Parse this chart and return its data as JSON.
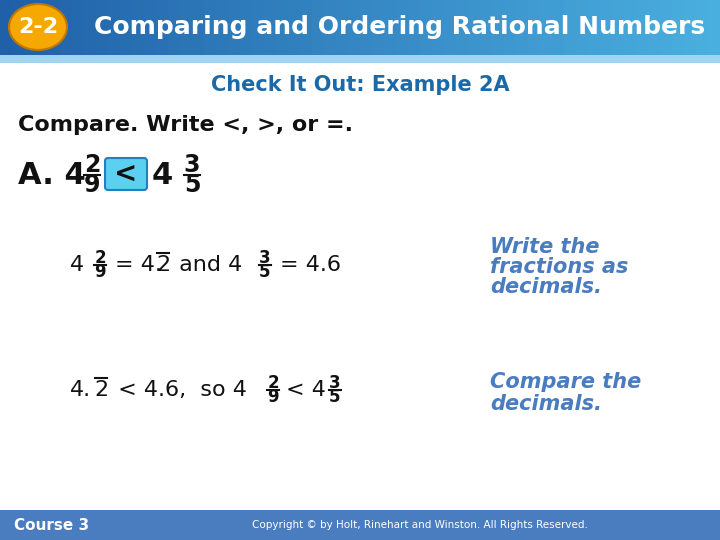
{
  "bg_color": "#ffffff",
  "header_bg_left": "#2060a8",
  "header_bg_right": "#4ab0e0",
  "header_text_color": "#ffffff",
  "badge_bg": "#f5a800",
  "badge_text": "2-2",
  "header_title": "Comparing and Ordering Rational Numbers",
  "subtitle": "Check It Out: Example 2A",
  "subtitle_color": "#1a6aaa",
  "body_text_color": "#111111",
  "italic_color": "#4a7cc0",
  "footer_bg": "#4a7cc0",
  "footer_left": "Course 3",
  "footer_right": "Copyright © by Holt, Rinehart and Winston. All Rights Reserved.",
  "compare_box_color": "#5bd0f0",
  "compare_box_border": "#2080c0"
}
